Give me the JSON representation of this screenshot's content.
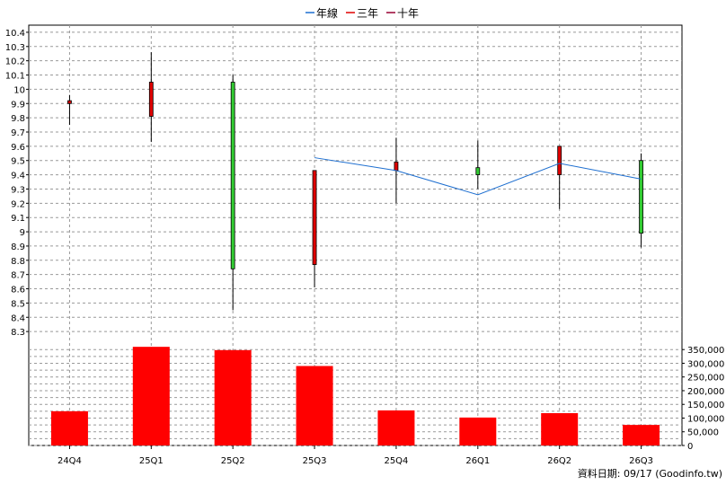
{
  "legend": [
    {
      "label": "年線",
      "color": "#1e6fd0"
    },
    {
      "label": "三年",
      "color": "#e00000"
    },
    {
      "label": "十年",
      "color": "#990033"
    }
  ],
  "footer": "資料日期: 09/17  (Goodinfo.tw)",
  "colors": {
    "up": "#e00000",
    "down": "#33cc33",
    "ma": "#1e6fd0",
    "volume": "#ff0000"
  },
  "chart_data": {
    "type": "candlestick+bar",
    "categories": [
      "24Q4",
      "25Q1",
      "25Q2",
      "25Q3",
      "25Q4",
      "26Q1",
      "26Q2",
      "26Q3"
    ],
    "price_axis": {
      "ylim": [
        8.2,
        10.45
      ],
      "ticks": [
        "10.4",
        "10.3",
        "10.2",
        "10.1",
        "10",
        "9.9",
        "9.8",
        "9.7",
        "9.6",
        "9.5",
        "9.4",
        "9.3",
        "9.2",
        "9.1",
        "9",
        "8.9",
        "8.8",
        "8.7",
        "8.6",
        "8.5",
        "8.4",
        "8.3"
      ],
      "tick_values": [
        10.4,
        10.3,
        10.2,
        10.1,
        10.0,
        9.9,
        9.8,
        9.7,
        9.6,
        9.5,
        9.4,
        9.3,
        9.2,
        9.1,
        9.0,
        8.9,
        8.8,
        8.7,
        8.6,
        8.5,
        8.4,
        8.3
      ]
    },
    "candles": [
      {
        "open": 9.9,
        "close": 9.92,
        "high": 9.96,
        "low": 9.75
      },
      {
        "open": 9.81,
        "close": 10.05,
        "high": 10.26,
        "low": 9.63
      },
      {
        "open": 10.05,
        "close": 8.74,
        "high": 10.1,
        "low": 8.45
      },
      {
        "open": 8.77,
        "close": 9.43,
        "high": 9.43,
        "low": 8.61
      },
      {
        "open": 9.43,
        "close": 9.49,
        "high": 9.66,
        "low": 9.2
      },
      {
        "open": 9.45,
        "close": 9.4,
        "high": 9.64,
        "low": 9.3
      },
      {
        "open": 9.4,
        "close": 9.6,
        "high": 9.6,
        "low": 9.16
      },
      {
        "open": 9.5,
        "close": 8.99,
        "high": 9.55,
        "low": 8.89
      }
    ],
    "series": [
      {
        "name": "年線",
        "values": [
          null,
          null,
          null,
          9.52,
          9.43,
          9.26,
          9.48,
          9.37
        ]
      }
    ],
    "volume_axis": {
      "ylim": [
        0,
        390000
      ],
      "ticks": [
        "350,000",
        "300,000",
        "250,000",
        "200,000",
        "150,000",
        "100,000",
        "50,000",
        "0"
      ],
      "tick_values": [
        350000,
        300000,
        250000,
        200000,
        150000,
        100000,
        50000,
        0
      ]
    },
    "volume": [
      125000,
      360000,
      348000,
      290000,
      128000,
      102000,
      118000,
      75000
    ],
    "grid": true,
    "legend_position": "top-center"
  }
}
